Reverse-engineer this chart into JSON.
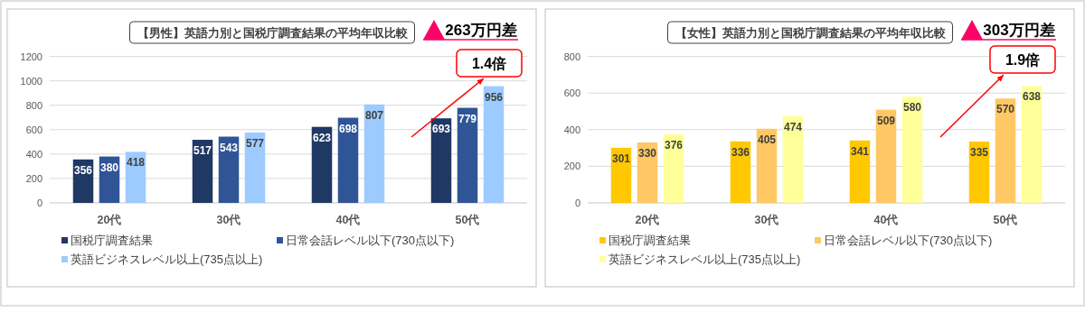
{
  "chart_data": [
    {
      "type": "bar",
      "title": "【男性】英語力別と国税庁調査結果の平均年収比較",
      "categories": [
        "20代",
        "30代",
        "40代",
        "50代"
      ],
      "series": [
        {
          "name": "国税庁調査結果",
          "color": "#1f3864",
          "values": [
            356,
            517,
            623,
            693
          ]
        },
        {
          "name": "日常会話レベル以下(730点以下)",
          "color": "#2f5597",
          "values": [
            380,
            543,
            698,
            779
          ]
        },
        {
          "name": "英語ビジネスレベル以上(735点以上)",
          "color": "#9dcbff",
          "values": [
            418,
            577,
            807,
            956
          ]
        }
      ],
      "ylim": [
        0,
        1200
      ],
      "yticks": [
        0,
        200,
        400,
        600,
        800,
        1000,
        1200
      ],
      "grid": "y",
      "legend": "bottom",
      "data_labels": true,
      "annotations": [
        "263万円差",
        "1.4倍"
      ]
    },
    {
      "type": "bar",
      "title": "【女性】英語力別と国税庁調査結果の平均年収比較",
      "categories": [
        "20代",
        "30代",
        "40代",
        "50代"
      ],
      "series": [
        {
          "name": "国税庁調査結果",
          "color": "#ffc800",
          "values": [
            301,
            336,
            341,
            335
          ]
        },
        {
          "name": "日常会話レベル以下(730点以下)",
          "color": "#ffc864",
          "values": [
            330,
            405,
            509,
            570
          ]
        },
        {
          "name": "英語ビジネスレベル以上(735点以上)",
          "color": "#ffff99",
          "values": [
            376,
            474,
            580,
            638
          ]
        }
      ],
      "ylim": [
        0,
        800
      ],
      "yticks": [
        0,
        200,
        400,
        600,
        800
      ],
      "grid": "y",
      "legend": "bottom",
      "data_labels": true,
      "annotations": [
        "303万円差",
        "1.9倍"
      ]
    }
  ]
}
